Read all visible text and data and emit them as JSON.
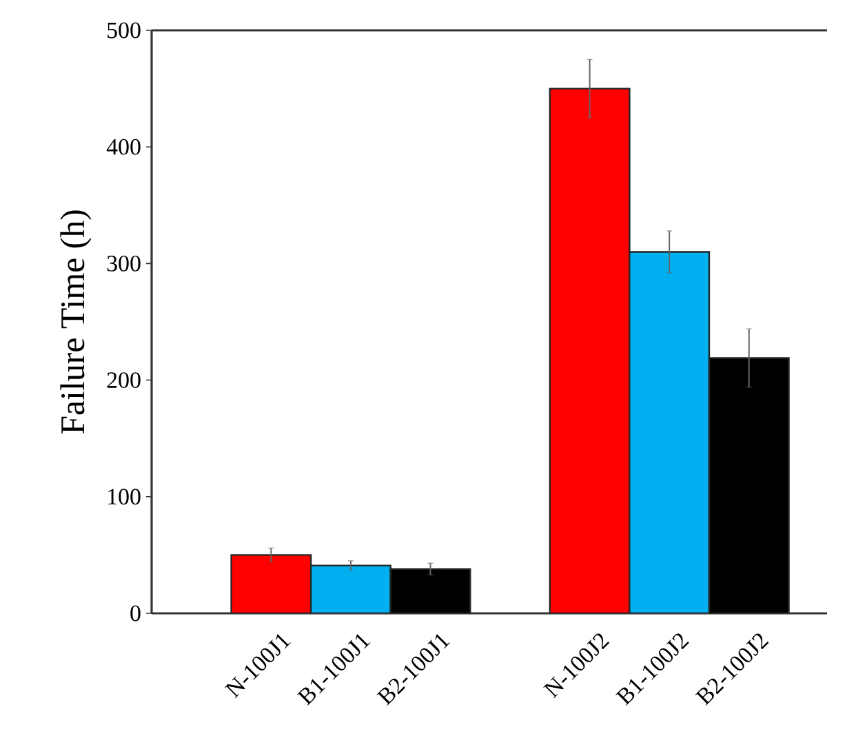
{
  "chart_data": {
    "type": "bar",
    "ylabel": "Failure Time (h)",
    "categories": [
      "N-100J1",
      "B1-100J1",
      "B2-100J1",
      null,
      "N-100J2",
      "B1-100J2",
      "B2-100J2"
    ],
    "values": [
      50,
      41,
      38,
      null,
      450,
      310,
      219
    ],
    "errors": [
      6,
      4,
      5,
      null,
      25,
      18,
      25
    ],
    "colors": [
      "#ff0000",
      "#00b0f0",
      "#000000",
      null,
      "#ff0000",
      "#00b0f0",
      "#000000"
    ],
    "ylim": [
      0,
      500
    ],
    "yticks": [
      0,
      100,
      200,
      300,
      400,
      500
    ]
  }
}
